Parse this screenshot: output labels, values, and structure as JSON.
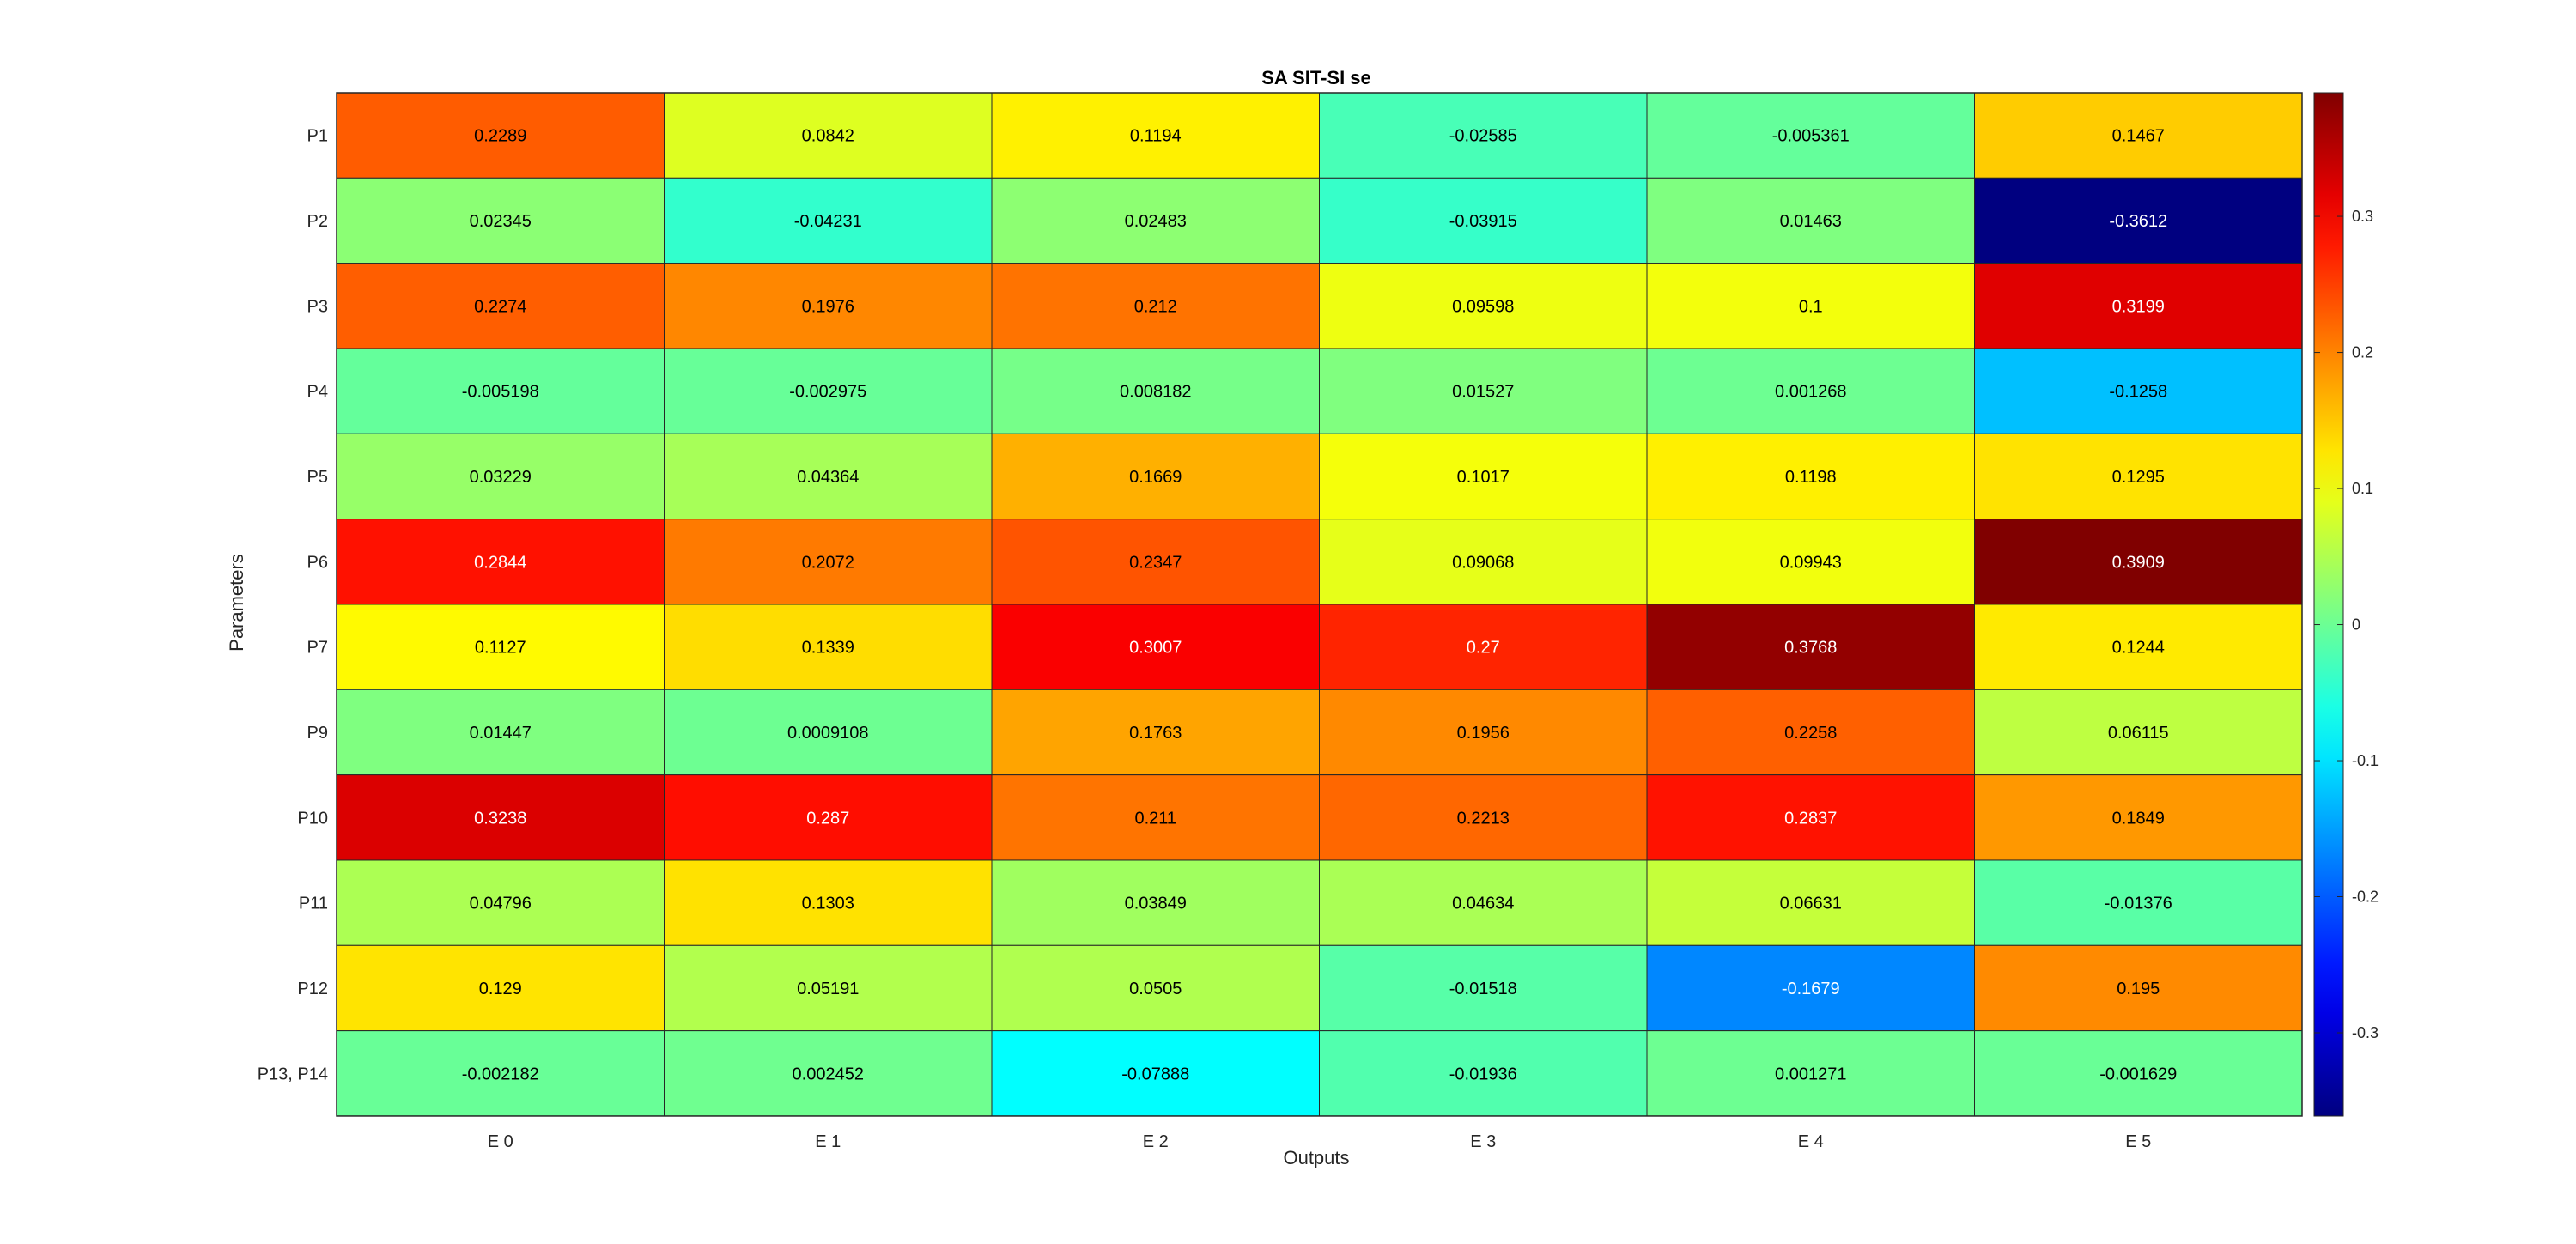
{
  "chart_data": {
    "type": "heatmap",
    "title": "SA SIT-SI se",
    "xlabel": "Outputs",
    "ylabel": "Parameters",
    "x_categories": [
      "E 0",
      "E 1",
      "E 2",
      "E 3",
      "E 4",
      "E 5"
    ],
    "y_categories": [
      "P1",
      "P2",
      "P3",
      "P4",
      "P5",
      "P6",
      "P7",
      "P9",
      "P10",
      "P11",
      "P12",
      "P13, P14"
    ],
    "values": [
      [
        "0.2289",
        "0.0842",
        "0.1194",
        "-0.02585",
        "-0.005361",
        "0.1467"
      ],
      [
        "0.02345",
        "-0.04231",
        "0.02483",
        "-0.03915",
        "0.01463",
        "-0.3612"
      ],
      [
        "0.2274",
        "0.1976",
        "0.212",
        "0.09598",
        "0.1",
        "0.3199"
      ],
      [
        "-0.005198",
        "-0.002975",
        "0.008182",
        "0.01527",
        "0.001268",
        "-0.1258"
      ],
      [
        "0.03229",
        "0.04364",
        "0.1669",
        "0.1017",
        "0.1198",
        "0.1295"
      ],
      [
        "0.2844",
        "0.2072",
        "0.2347",
        "0.09068",
        "0.09943",
        "0.3909"
      ],
      [
        "0.1127",
        "0.1339",
        "0.3007",
        "0.27",
        "0.3768",
        "0.1244"
      ],
      [
        "0.01447",
        "0.0009108",
        "0.1763",
        "0.1956",
        "0.2258",
        "0.06115"
      ],
      [
        "0.3238",
        "0.287",
        "0.211",
        "0.2213",
        "0.2837",
        "0.1849"
      ],
      [
        "0.04796",
        "0.1303",
        "0.03849",
        "0.04634",
        "0.06631",
        "-0.01376"
      ],
      [
        "0.129",
        "0.05191",
        "0.0505",
        "-0.01518",
        "-0.1679",
        "0.195"
      ],
      [
        "-0.002182",
        "0.002452",
        "-0.07888",
        "-0.01936",
        "0.001271",
        "-0.001629"
      ]
    ],
    "colormap": "jet",
    "clim": [
      -0.3612,
      0.3909
    ],
    "colorbar": {
      "ticks": [
        -0.3,
        -0.2,
        -0.1,
        0,
        0.1,
        0.2,
        0.3
      ],
      "tick_labels": [
        "-0.3",
        "-0.2",
        "-0.1",
        "0",
        "0.1",
        "0.2",
        "0.3"
      ]
    },
    "grid": true,
    "legend": "none"
  }
}
